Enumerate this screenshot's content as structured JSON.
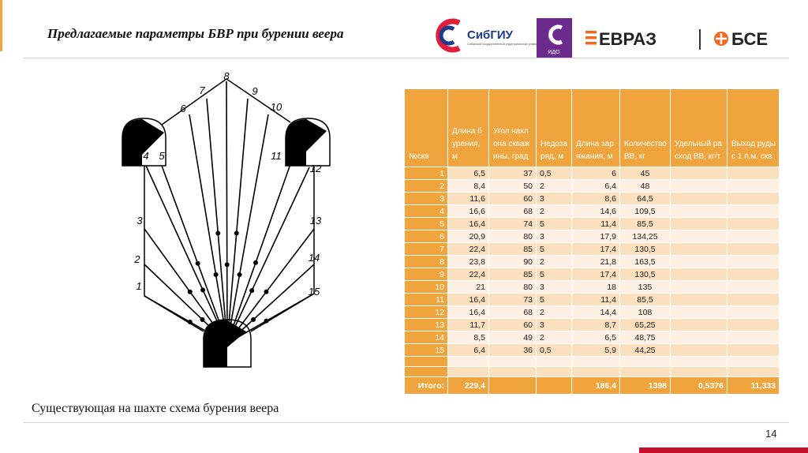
{
  "header": {
    "title": "Предлагаемые параметры БВР  при бурении веера",
    "logos": [
      "СибГИУ",
      "Сибирский государственный индустриальный университет",
      "ИДО",
      "ЕВРАЗ",
      "БСЕ"
    ]
  },
  "diagram": {
    "labels": [
      "1",
      "2",
      "3",
      "4",
      "5",
      "6",
      "7",
      "8",
      "9",
      "10",
      "11",
      "12",
      "13",
      "14",
      "15"
    ]
  },
  "table": {
    "columns": [
      "№скв",
      "Длина бурения, м",
      "Угол наклона скважины, град",
      "Недозаряд, м",
      "Длина заряжания, м",
      "Количество ВВ, кг",
      "Удельный расход ВВ, кг/т",
      "Выход руды с 1 п.м. скв."
    ],
    "rows": [
      [
        "1",
        "6,5",
        "37",
        "0,5",
        "6",
        "45"
      ],
      [
        "2",
        "8,4",
        "50",
        "2",
        "6,4",
        "48"
      ],
      [
        "3",
        "11,6",
        "60",
        "3",
        "8,6",
        "64,5"
      ],
      [
        "4",
        "16,6",
        "68",
        "2",
        "14,6",
        "109,5"
      ],
      [
        "5",
        "16,4",
        "74",
        "5",
        "11,4",
        "85,5"
      ],
      [
        "6",
        "20,9",
        "80",
        "3",
        "17,9",
        "134,25"
      ],
      [
        "7",
        "22,4",
        "85",
        "5",
        "17,4",
        "130,5"
      ],
      [
        "8",
        "23,8",
        "90",
        "2",
        "21,8",
        "163,5"
      ],
      [
        "9",
        "22,4",
        "85",
        "5",
        "17,4",
        "130,5"
      ],
      [
        "10",
        "21",
        "80",
        "3",
        "18",
        "135"
      ],
      [
        "11",
        "16,4",
        "73",
        "5",
        "11,4",
        "85,5"
      ],
      [
        "12",
        "16,4",
        "68",
        "2",
        "14,4",
        "108"
      ],
      [
        "13",
        "11,7",
        "60",
        "3",
        "8,7",
        "65,25"
      ],
      [
        "14",
        "8,5",
        "49",
        "2",
        "6,5",
        "48,75"
      ],
      [
        "15",
        "6,4",
        "36",
        "0,5",
        "5,9",
        "44,25"
      ]
    ],
    "total": [
      "Итого:",
      "229,4",
      null,
      null,
      "186,4",
      "1398",
      "0,5376",
      "11,333"
    ]
  },
  "caption": "Существующая на шахте схема бурения веера",
  "page_number": "14"
}
